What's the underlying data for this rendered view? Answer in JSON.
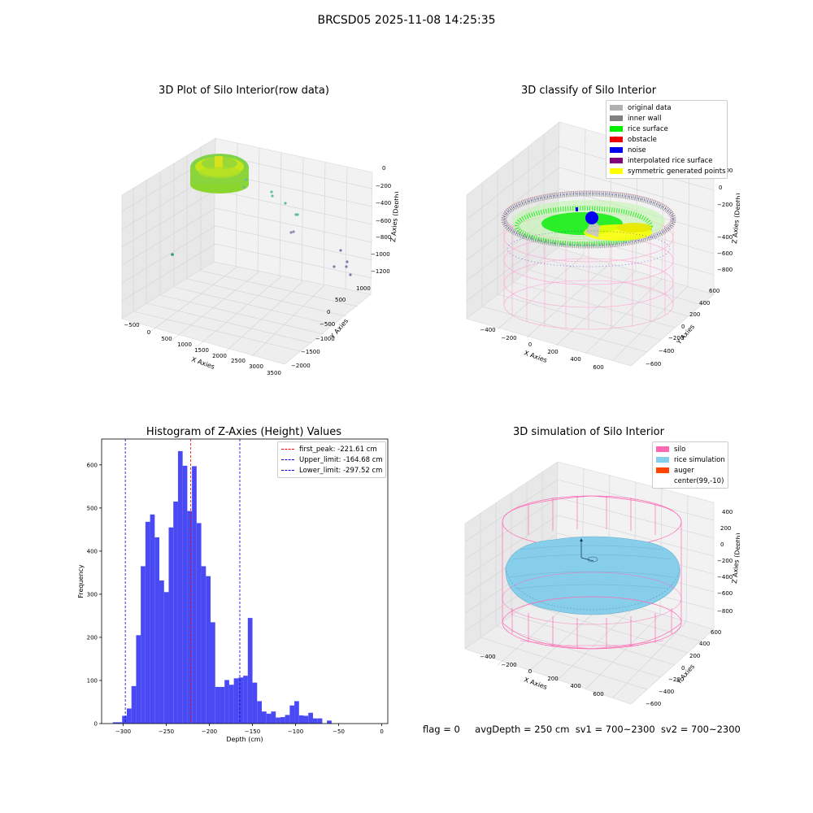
{
  "suptitle": "BRCSD05 2025-11-08 14:25:35",
  "colors": {
    "pane_left": "#e8e8e8",
    "pane_right": "#f2f2f2",
    "pane_floor": "#eeeeee",
    "grid": "#d0d0d0",
    "hist_bar": "#4a4af5",
    "silo_pink": "#ff69b4",
    "rice_blue": "#87ceeb",
    "auger": "#ff4500"
  },
  "plot1": {
    "title": "3D Plot of Silo Interior(row data)",
    "xlabel": "X Axies",
    "ylabel": "Y Axies",
    "zlabel": "Z Axies (Depth)",
    "xticks": [
      "−500",
      "0",
      "500",
      "1000",
      "1500",
      "2000",
      "2500",
      "3000",
      "3500"
    ],
    "yticks": [
      "1000",
      "500",
      "0",
      "−500",
      "−1000",
      "−1500",
      "−2000"
    ],
    "zticks": [
      "0",
      "−200",
      "−400",
      "−600",
      "−800",
      "−1000",
      "−1200"
    ]
  },
  "plot2": {
    "title": "3D classify of Silo Interior",
    "xlabel": "X Axies",
    "ylabel": "Y Axies",
    "zlabel": "Z Axies (Depth)",
    "xticks": [
      "−400",
      "−200",
      "0",
      "200",
      "400",
      "600"
    ],
    "yticks": [
      "600",
      "400",
      "200",
      "0",
      "−200",
      "−400",
      "−600"
    ],
    "zticks": [
      "200",
      "0",
      "−200",
      "−400",
      "−600",
      "−800"
    ],
    "legend": [
      {
        "label": "original data",
        "color": "#b0b0b0"
      },
      {
        "label": "inner wall",
        "color": "#808080"
      },
      {
        "label": "rice surface",
        "color": "#00ee00"
      },
      {
        "label": "obstacle",
        "color": "#ee0000"
      },
      {
        "label": "noise",
        "color": "#0000ee"
      },
      {
        "label": "interpolated rice surface",
        "color": "#800080"
      },
      {
        "label": "symmetric generated points",
        "color": "#ffff00"
      }
    ]
  },
  "plot4": {
    "title": "3D simulation of Silo Interior",
    "xlabel": "X Axies",
    "ylabel": "Y Axies",
    "zlabel": "Z Axies (Depth)",
    "xticks": [
      "−400",
      "−200",
      "0",
      "200",
      "400",
      "600"
    ],
    "yticks": [
      "600",
      "400",
      "200",
      "0",
      "−200",
      "−400",
      "−600"
    ],
    "zticks": [
      "400",
      "200",
      "0",
      "−200",
      "−400",
      "−600",
      "−800"
    ],
    "legend": [
      {
        "label": "silo",
        "color": "#ff69b4"
      },
      {
        "label": "rice simulation",
        "color": "#87ceeb"
      },
      {
        "label": "auger",
        "color": "#ff4500"
      },
      {
        "label": "center(99,-10)",
        "color": ""
      }
    ]
  },
  "footer": {
    "flag": "flag = 0",
    "avgdepth": "avgDepth = 250 cm",
    "sv1": "sv1 = 700~2300",
    "sv2": "sv2 = 700~2300"
  },
  "chart_data": {
    "type": "bar",
    "title": "Histogram of Z-Axies (Height) Values",
    "xlabel": "Depth (cm)",
    "ylabel": "Frequency",
    "xlim": [
      -325,
      7
    ],
    "ylim": [
      0,
      660
    ],
    "xticks": [
      -300,
      -250,
      -200,
      -150,
      -100,
      -50,
      0
    ],
    "xtick_labels": [
      "−300",
      "−250",
      "−200",
      "−150",
      "−100",
      "−50",
      "0"
    ],
    "yticks": [
      0,
      100,
      200,
      300,
      400,
      500,
      600
    ],
    "bin_start": -312,
    "bin_width": 5.4,
    "values": [
      3,
      3,
      18,
      35,
      87,
      205,
      365,
      468,
      485,
      432,
      332,
      305,
      455,
      515,
      632,
      598,
      493,
      597,
      465,
      365,
      342,
      235,
      85,
      85,
      101,
      90,
      105,
      107,
      111,
      245,
      95,
      52,
      28,
      23,
      28,
      14,
      15,
      20,
      42,
      52,
      19,
      18,
      25,
      12,
      12,
      0,
      7
    ],
    "lines": [
      {
        "label": "first_peak: -221.61 cm",
        "x": -221.61,
        "color": "#ff0000"
      },
      {
        "label": "Upper_limit: -164.68 cm",
        "x": -164.68,
        "color": "#0000cc"
      },
      {
        "label": "Lower_limit: -297.52 cm",
        "x": -297.52,
        "color": "#0000cc"
      }
    ],
    "legend_position": "upper right"
  }
}
